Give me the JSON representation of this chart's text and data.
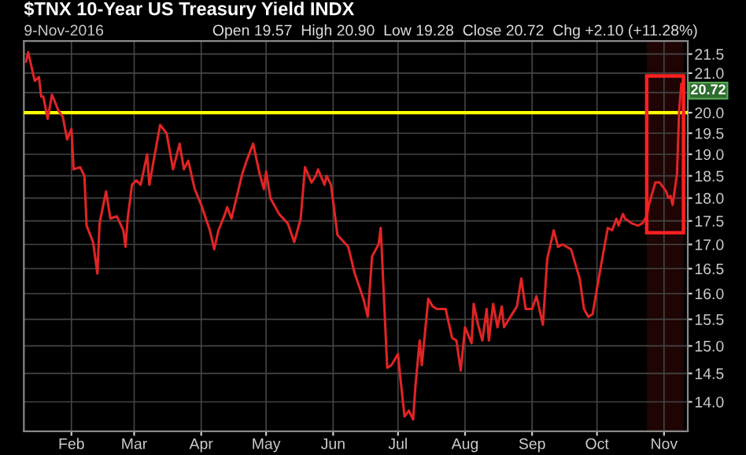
{
  "chart_data": {
    "type": "line",
    "title": "$TNX 10-Year US Treasury Yield INDX",
    "subtitle": "9-Nov-2016",
    "annotations": [
      "Open 19.57  High 20.90  Low 19.28  Close 20.72  Chg +2.10 (+11.28%)",
      {
        "text": "20.72",
        "x": "2016-11-09",
        "y": 20.72
      }
    ],
    "x": [
      "2016-01-11",
      "2016-01-12",
      "2016-01-15",
      "2016-01-17",
      "2016-01-18",
      "2016-01-19",
      "2016-01-21",
      "2016-01-23",
      "2016-01-26",
      "2016-01-28",
      "2016-01-30",
      "2016-02-01",
      "2016-02-02",
      "2016-02-05",
      "2016-02-07",
      "2016-02-08",
      "2016-02-11",
      "2016-02-13",
      "2016-02-14",
      "2016-02-17",
      "2016-02-19",
      "2016-02-22",
      "2016-02-25",
      "2016-02-26",
      "2016-02-27",
      "2016-02-29",
      "2016-03-02",
      "2016-03-04",
      "2016-03-07",
      "2016-03-08",
      "2016-03-10",
      "2016-03-13",
      "2016-03-16",
      "2016-03-19",
      "2016-03-22",
      "2016-03-24",
      "2016-03-26",
      "2016-03-29",
      "2016-04-01",
      "2016-04-05",
      "2016-04-07",
      "2016-04-09",
      "2016-04-12",
      "2016-04-13",
      "2016-04-15",
      "2016-04-20",
      "2016-04-22",
      "2016-04-25",
      "2016-04-28",
      "2016-04-30",
      "2016-05-01",
      "2016-05-03",
      "2016-05-07",
      "2016-05-11",
      "2016-05-14",
      "2016-05-17",
      "2016-05-19",
      "2016-05-22",
      "2016-05-24",
      "2016-05-25",
      "2016-05-28",
      "2016-05-29",
      "2016-05-31",
      "2016-06-03",
      "2016-06-05",
      "2016-06-08",
      "2016-06-11",
      "2016-06-15",
      "2016-06-17",
      "2016-06-19",
      "2016-06-22",
      "2016-06-23",
      "2016-06-26",
      "2016-06-28",
      "2016-07-01",
      "2016-07-02",
      "2016-07-04",
      "2016-07-06",
      "2016-07-08",
      "2016-07-09",
      "2016-07-11",
      "2016-07-12",
      "2016-07-15",
      "2016-07-17",
      "2016-07-19",
      "2016-07-23",
      "2016-07-26",
      "2016-07-28",
      "2016-07-30",
      "2016-08-01",
      "2016-08-04",
      "2016-08-05",
      "2016-08-07",
      "2016-08-09",
      "2016-08-11",
      "2016-08-12",
      "2016-08-14",
      "2016-08-16",
      "2016-08-18",
      "2016-08-19",
      "2016-08-22",
      "2016-08-25",
      "2016-08-27",
      "2016-08-29",
      "2016-09-01",
      "2016-09-03",
      "2016-09-06",
      "2016-09-08",
      "2016-09-11",
      "2016-09-13",
      "2016-09-15",
      "2016-09-19",
      "2016-09-23",
      "2016-09-25",
      "2016-09-27",
      "2016-09-29",
      "2016-10-01",
      "2016-10-04",
      "2016-10-06",
      "2016-10-08",
      "2016-10-10",
      "2016-10-11",
      "2016-10-13",
      "2016-10-14",
      "2016-10-17",
      "2016-10-20",
      "2016-10-22",
      "2016-10-24",
      "2016-10-25",
      "2016-10-28",
      "2016-10-30",
      "2016-11-02",
      "2016-11-03",
      "2016-11-04",
      "2016-11-05",
      "2016-11-07",
      "2016-11-08",
      "2016-11-09"
    ],
    "series": [
      {
        "color": "#e02424",
        "values": [
          21.3,
          21.55,
          20.8,
          20.9,
          20.4,
          20.4,
          19.85,
          20.45,
          20.05,
          19.9,
          19.35,
          19.6,
          18.65,
          18.7,
          18.5,
          17.4,
          17.05,
          16.4,
          17.45,
          18.15,
          17.55,
          17.6,
          17.3,
          16.95,
          17.55,
          18.3,
          18.4,
          18.3,
          19.0,
          18.3,
          18.85,
          19.7,
          19.5,
          18.65,
          19.25,
          18.65,
          18.85,
          18.2,
          17.85,
          17.3,
          16.9,
          17.3,
          17.65,
          17.8,
          17.55,
          18.55,
          18.85,
          19.25,
          18.55,
          18.2,
          18.6,
          18.0,
          17.65,
          17.45,
          17.05,
          17.55,
          18.7,
          18.35,
          18.5,
          18.65,
          18.3,
          18.5,
          18.3,
          17.2,
          17.1,
          16.95,
          16.4,
          15.9,
          15.55,
          16.75,
          17.0,
          17.35,
          14.6,
          14.65,
          14.85,
          14.45,
          13.75,
          13.85,
          13.7,
          14.25,
          15.1,
          14.65,
          15.9,
          15.75,
          15.7,
          15.7,
          15.15,
          15.1,
          14.55,
          15.35,
          15.05,
          15.8,
          15.4,
          15.1,
          15.7,
          15.1,
          15.8,
          15.35,
          15.75,
          15.35,
          15.55,
          15.75,
          16.3,
          15.7,
          15.7,
          15.95,
          15.4,
          16.7,
          17.3,
          16.95,
          17.0,
          16.9,
          16.3,
          15.7,
          15.55,
          15.6,
          16.1,
          16.85,
          17.35,
          17.3,
          17.55,
          17.4,
          17.65,
          17.55,
          17.45,
          17.4,
          17.45,
          17.6,
          17.85,
          18.35,
          18.35,
          18.15,
          18.0,
          18.05,
          17.85,
          18.55,
          20.05,
          20.72
        ]
      }
    ],
    "xlim": [
      "2016-01-10",
      "2016-11-12"
    ],
    "xticks": [
      {
        "value": "2016-02-01",
        "label": "Feb"
      },
      {
        "value": "2016-03-01",
        "label": "Mar"
      },
      {
        "value": "2016-04-01",
        "label": "Apr"
      },
      {
        "value": "2016-05-01",
        "label": "May"
      },
      {
        "value": "2016-06-01",
        "label": "Jun"
      },
      {
        "value": "2016-07-01",
        "label": "Jul"
      },
      {
        "value": "2016-08-01",
        "label": "Aug"
      },
      {
        "value": "2016-09-01",
        "label": "Sep"
      },
      {
        "value": "2016-10-01",
        "label": "Oct"
      },
      {
        "value": "2016-11-01",
        "label": "Nov"
      }
    ],
    "ylim": [
      13.5,
      21.85
    ],
    "yticks": [
      {
        "value": 14,
        "label": "14.0"
      },
      14.5,
      {
        "value": 15,
        "label": "15.0"
      },
      15.5,
      {
        "value": 16,
        "label": "16.0"
      },
      16.5,
      {
        "value": 17,
        "label": "17.0"
      },
      17.5,
      {
        "value": 18,
        "label": "18.0"
      },
      18.5,
      {
        "value": 19,
        "label": "19.0"
      },
      19.5,
      {
        "value": 20,
        "label": "20.0"
      },
      {
        "value": 20.5,
        "label": null
      },
      {
        "value": 21,
        "label": "21.0"
      },
      21.5
    ],
    "log": "y",
    "grid": true,
    "ref_lines": [
      {
        "axis": "y",
        "value": 20.0,
        "color": "#ffff00"
      }
    ],
    "bands": [
      {
        "axis": "x",
        "from": "2016-10-24",
        "to": "2016-11-10",
        "color": "#ff2020"
      }
    ]
  }
}
